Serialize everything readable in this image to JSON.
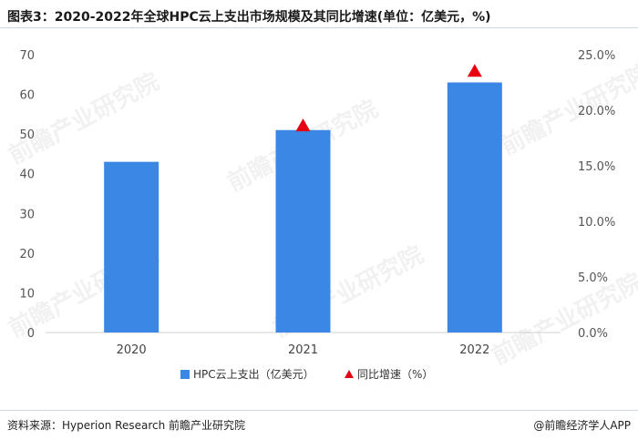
{
  "title": "图表3：2020-2022年全球HPC云上支出市场规模及其同比增速(单位：亿美元，%)",
  "source": "资料来源：Hyperion Research 前瞻产业研究院",
  "brand": "@前瞻经济学人APP",
  "watermark": "前瞻产业研究院",
  "chart_data": {
    "type": "bar",
    "categories": [
      "2020",
      "2021",
      "2022"
    ],
    "series": [
      {
        "name": "HPC云上支出（亿美元）",
        "type": "bar",
        "axis": "left",
        "values": [
          43,
          51,
          63
        ],
        "color": "#3a87e6"
      },
      {
        "name": "同比增速（%）",
        "type": "scatter",
        "marker": "triangle",
        "axis": "right",
        "values": [
          null,
          18.6,
          23.5
        ],
        "color": "#e60012"
      }
    ],
    "y_left": {
      "min": 0,
      "max": 70,
      "ticks": [
        "0",
        "10",
        "20",
        "30",
        "40",
        "50",
        "60",
        "70"
      ]
    },
    "y_right": {
      "min": 0,
      "max": 25,
      "ticks": [
        "0.0%",
        "5.0%",
        "10.0%",
        "15.0%",
        "20.0%",
        "25.0%"
      ]
    },
    "grid": false,
    "legend": "bottom"
  }
}
